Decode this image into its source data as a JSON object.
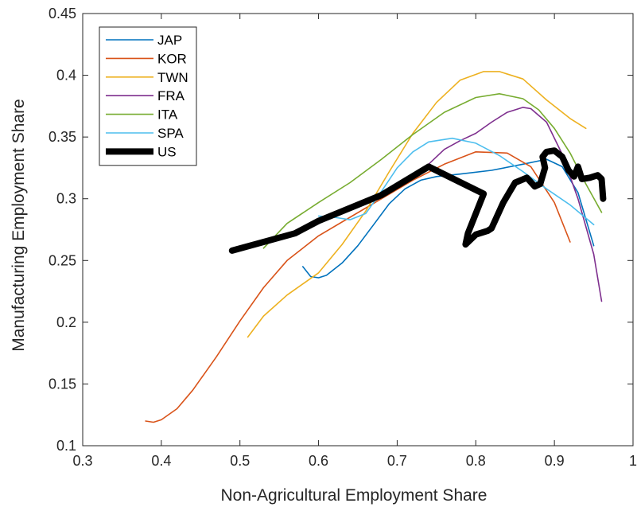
{
  "chart_data": {
    "type": "line",
    "title": "",
    "xlabel": "Non-Agricultural Employment Share",
    "ylabel": "Manufacturing Employment Share",
    "xlim": [
      0.3,
      1.0
    ],
    "ylim": [
      0.1,
      0.45
    ],
    "xticks": [
      0.3,
      0.4,
      0.5,
      0.6,
      0.7,
      0.8,
      0.9,
      1.0
    ],
    "xtick_labels": [
      "0.3",
      "0.4",
      "0.5",
      "0.6",
      "0.7",
      "0.8",
      "0.9",
      "1"
    ],
    "yticks": [
      0.1,
      0.15,
      0.2,
      0.25,
      0.3,
      0.35,
      0.4,
      0.45
    ],
    "ytick_labels": [
      "0.1",
      "0.15",
      "0.2",
      "0.25",
      "0.3",
      "0.35",
      "0.4",
      "0.45"
    ],
    "grid": false,
    "legend_position": "top-left",
    "series": [
      {
        "name": "JAP",
        "color": "#0072BD",
        "width": 1.6,
        "x": [
          0.58,
          0.59,
          0.6,
          0.61,
          0.63,
          0.65,
          0.67,
          0.69,
          0.71,
          0.73,
          0.75,
          0.78,
          0.82,
          0.86,
          0.89,
          0.91,
          0.93,
          0.95
        ],
        "y": [
          0.245,
          0.237,
          0.236,
          0.238,
          0.248,
          0.262,
          0.279,
          0.296,
          0.308,
          0.315,
          0.318,
          0.32,
          0.323,
          0.328,
          0.332,
          0.326,
          0.305,
          0.262
        ]
      },
      {
        "name": "KOR",
        "color": "#D95319",
        "width": 1.6,
        "x": [
          0.38,
          0.39,
          0.4,
          0.42,
          0.44,
          0.47,
          0.5,
          0.53,
          0.56,
          0.6,
          0.64,
          0.68,
          0.72,
          0.76,
          0.8,
          0.84,
          0.87,
          0.9,
          0.92
        ],
        "y": [
          0.12,
          0.119,
          0.121,
          0.13,
          0.145,
          0.172,
          0.201,
          0.228,
          0.25,
          0.27,
          0.285,
          0.3,
          0.315,
          0.328,
          0.338,
          0.337,
          0.326,
          0.297,
          0.265
        ]
      },
      {
        "name": "TWN",
        "color": "#EDB120",
        "width": 1.6,
        "x": [
          0.51,
          0.53,
          0.56,
          0.6,
          0.63,
          0.66,
          0.69,
          0.72,
          0.75,
          0.78,
          0.81,
          0.83,
          0.86,
          0.89,
          0.92,
          0.94
        ],
        "y": [
          0.188,
          0.205,
          0.222,
          0.24,
          0.263,
          0.29,
          0.322,
          0.353,
          0.378,
          0.396,
          0.403,
          0.403,
          0.397,
          0.38,
          0.365,
          0.357
        ]
      },
      {
        "name": "FRA",
        "color": "#7E2F8E",
        "width": 1.6,
        "x": [
          0.74,
          0.76,
          0.78,
          0.8,
          0.82,
          0.84,
          0.86,
          0.87,
          0.89,
          0.91,
          0.93,
          0.95,
          0.96
        ],
        "y": [
          0.328,
          0.34,
          0.347,
          0.353,
          0.362,
          0.37,
          0.374,
          0.373,
          0.362,
          0.336,
          0.3,
          0.255,
          0.217
        ]
      },
      {
        "name": "ITA",
        "color": "#77AC30",
        "width": 1.6,
        "x": [
          0.53,
          0.56,
          0.6,
          0.64,
          0.68,
          0.72,
          0.76,
          0.8,
          0.83,
          0.86,
          0.88,
          0.9,
          0.92,
          0.94,
          0.96
        ],
        "y": [
          0.26,
          0.28,
          0.297,
          0.313,
          0.332,
          0.352,
          0.37,
          0.382,
          0.385,
          0.381,
          0.372,
          0.357,
          0.337,
          0.312,
          0.289
        ]
      },
      {
        "name": "SPA",
        "color": "#4DBEEE",
        "width": 1.6,
        "x": [
          0.6,
          0.62,
          0.64,
          0.66,
          0.68,
          0.7,
          0.72,
          0.74,
          0.77,
          0.8,
          0.83,
          0.86,
          0.89,
          0.92,
          0.95
        ],
        "y": [
          0.286,
          0.285,
          0.283,
          0.288,
          0.306,
          0.325,
          0.338,
          0.346,
          0.349,
          0.345,
          0.335,
          0.322,
          0.308,
          0.295,
          0.279
        ]
      },
      {
        "name": "US",
        "color": "#000000",
        "width": 8,
        "x": [
          0.49,
          0.57,
          0.6,
          0.68,
          0.74,
          0.81,
          0.8,
          0.79,
          0.787,
          0.8,
          0.815,
          0.82,
          0.835,
          0.85,
          0.865,
          0.875,
          0.882,
          0.888,
          0.885,
          0.89,
          0.9,
          0.91,
          0.918,
          0.925,
          0.93,
          0.935,
          0.945,
          0.955,
          0.96,
          0.962
        ],
        "y": [
          0.258,
          0.272,
          0.282,
          0.303,
          0.326,
          0.304,
          0.288,
          0.272,
          0.263,
          0.271,
          0.274,
          0.276,
          0.297,
          0.313,
          0.317,
          0.31,
          0.312,
          0.325,
          0.334,
          0.338,
          0.339,
          0.334,
          0.323,
          0.318,
          0.326,
          0.316,
          0.317,
          0.319,
          0.316,
          0.3
        ]
      }
    ]
  }
}
